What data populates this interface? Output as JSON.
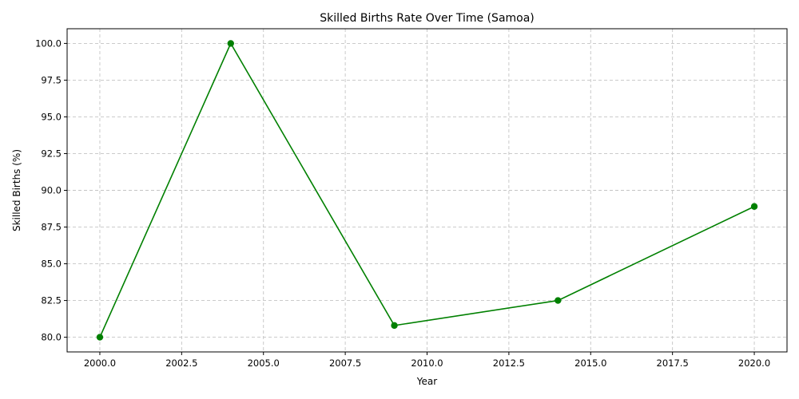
{
  "chart_data": {
    "type": "line",
    "title": "Skilled Births Rate Over Time (Samoa)",
    "xlabel": "Year",
    "ylabel": "Skilled Births (%)",
    "xlim": [
      1999,
      2021
    ],
    "ylim": [
      79,
      101
    ],
    "x_ticks": [
      2000.0,
      2002.5,
      2005.0,
      2007.5,
      2010.0,
      2012.5,
      2015.0,
      2017.5,
      2020.0
    ],
    "x_tick_labels": [
      "2000.0",
      "2002.5",
      "2005.0",
      "2007.5",
      "2010.0",
      "2012.5",
      "2015.0",
      "2017.5",
      "2020.0"
    ],
    "y_ticks": [
      80.0,
      82.5,
      85.0,
      87.5,
      90.0,
      92.5,
      95.0,
      97.5,
      100.0
    ],
    "y_tick_labels": [
      "80.0",
      "82.5",
      "85.0",
      "87.5",
      "90.0",
      "92.5",
      "95.0",
      "97.5",
      "100.0"
    ],
    "grid": true,
    "series": [
      {
        "color": "#008000",
        "marker": "circle",
        "x": [
          2000,
          2004,
          2009,
          2014,
          2020
        ],
        "y": [
          80.0,
          100.0,
          80.8,
          82.5,
          88.9
        ]
      }
    ]
  }
}
